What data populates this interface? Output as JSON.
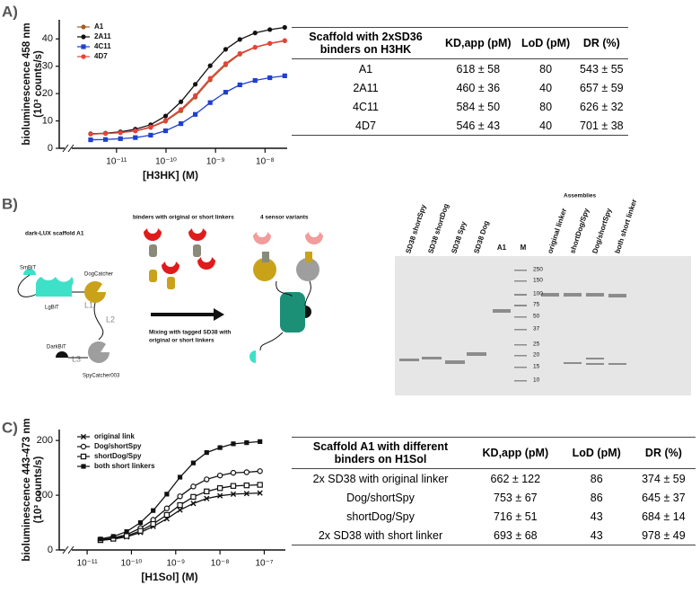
{
  "panels": {
    "a": "A)",
    "b": "B)",
    "c": "C)"
  },
  "chart_data": [
    {
      "type": "line",
      "xscale": "log",
      "xlabel": "[H3HK] (M)",
      "ylabel": [
        "bioluminescence 458 nm",
        "(10³ counts/s)"
      ],
      "xlim": [
        1.25e-12,
        2.8e-08
      ],
      "ylim": [
        0,
        47
      ],
      "xticks": [
        {
          "value": 1e-11,
          "label": "10⁻¹¹"
        },
        {
          "value": 1e-10,
          "label": "10⁻¹⁰"
        },
        {
          "value": 1e-09,
          "label": "10⁻⁹"
        },
        {
          "value": 1e-08,
          "label": "10⁻⁸"
        }
      ],
      "yticks": [
        0,
        10,
        20,
        30,
        40
      ],
      "legend": "upper left",
      "x": [
        3e-12,
        6e-12,
        1.2e-11,
        2.4e-11,
        4.9e-11,
        9.8e-11,
        2e-10,
        3.9e-10,
        7.8e-10,
        1.6e-09,
        3.1e-09,
        6.3e-09,
        1.25e-08,
        2.5e-08
      ],
      "series": [
        {
          "name": "A1",
          "color": "#a0602a",
          "marker": "circle",
          "values": [
            5.2,
            5.4,
            5.7,
            6.3,
            7.6,
            9.9,
            13.7,
            18.7,
            25,
            30.5,
            34.4,
            36.9,
            38.3,
            39.3
          ]
        },
        {
          "name": "2A11",
          "color": "#111111",
          "marker": "circle",
          "values": [
            5.3,
            5.5,
            6,
            7,
            8.6,
            11.8,
            17,
            23.4,
            30.2,
            36.2,
            39.8,
            42.2,
            43.4,
            44.2
          ]
        },
        {
          "name": "4C11",
          "color": "#1f3fd0",
          "marker": "square",
          "values": [
            3.1,
            3.2,
            3.5,
            3.9,
            4.8,
            6.4,
            9,
            12.4,
            16.7,
            20.5,
            23.2,
            24.8,
            25.8,
            26.5
          ]
        },
        {
          "name": "4D7",
          "color": "#e8423a",
          "marker": "circle",
          "values": [
            5.2,
            5.4,
            5.7,
            6.4,
            7.8,
            10.2,
            14.2,
            19.3,
            25.6,
            31,
            34.7,
            37,
            38.4,
            39.4
          ]
        }
      ]
    },
    {
      "type": "line",
      "xscale": "log",
      "xlabel": "[H1Sol] (M)",
      "ylabel": [
        "bioluminescence 443-473 nm",
        "(10³ counts/s)"
      ],
      "xlim": [
        4.5e-12,
        3e-07
      ],
      "ylim": [
        0,
        220
      ],
      "xticks": [
        {
          "value": 1e-11,
          "label": "10⁻¹¹"
        },
        {
          "value": 1e-10,
          "label": "10⁻¹⁰"
        },
        {
          "value": 1e-09,
          "label": "10⁻⁹"
        },
        {
          "value": 1e-08,
          "label": "10⁻⁸"
        },
        {
          "value": 1e-07,
          "label": "10⁻⁷"
        }
      ],
      "yticks": [
        0,
        100,
        200
      ],
      "legend": "upper left",
      "x": [
        2e-11,
        3.9e-11,
        7.8e-11,
        1.6e-10,
        3.1e-10,
        6.3e-10,
        1.25e-09,
        2.5e-09,
        5e-09,
        1e-08,
        2e-08,
        4e-08,
        8e-08
      ],
      "series": [
        {
          "name": "original link",
          "color": "#111111",
          "marker": "x",
          "values": [
            17.5,
            19.8,
            24,
            32,
            43,
            57,
            73,
            85,
            94,
            99,
            102,
            103,
            104
          ]
        },
        {
          "name": "Dog/shortSpy",
          "color": "#111111",
          "marker": "open-circle",
          "values": [
            18.6,
            21.9,
            28,
            40,
            55,
            76,
            98,
            116,
            129,
            136,
            141,
            142,
            144
          ]
        },
        {
          "name": "shortDog/Spy",
          "color": "#111111",
          "marker": "open-square",
          "values": [
            18,
            20.6,
            25.5,
            35,
            47.5,
            64,
            82,
            97,
            107,
            113,
            117,
            118,
            119
          ]
        },
        {
          "name": "both short linkers",
          "color": "#111111",
          "marker": "square",
          "values": [
            20,
            24.8,
            33.5,
            50,
            72,
            102,
            133,
            159,
            178,
            187,
            194,
            196,
            198
          ]
        }
      ]
    }
  ],
  "table_a": {
    "header": [
      "Scaffold with 2xSD36 binders on H3HK",
      "KD,app (pM)",
      "LoD (pM)",
      "DR (%)"
    ],
    "rows": [
      [
        "A1",
        "618 ± 58",
        "80",
        "543 ± 55"
      ],
      [
        "2A11",
        "460 ± 36",
        "40",
        "657 ± 59"
      ],
      [
        "4C11",
        "584 ± 50",
        "80",
        "626 ± 32"
      ],
      [
        "4D7",
        "546 ± 43",
        "40",
        "701 ± 38"
      ]
    ]
  },
  "table_c": {
    "header": [
      "Scaffold A1 with different binders on H1Sol",
      "KD,app (pM)",
      "LoD (pM)",
      "DR (%)"
    ],
    "rows": [
      [
        "2x SD38 with original linker",
        "662 ± 122",
        "86",
        "374 ± 59"
      ],
      [
        "Dog/shortSpy",
        "753 ± 67",
        "86",
        "645 ± 37"
      ],
      [
        "shortDog/Spy",
        "716 ± 51",
        "43",
        "684 ± 14"
      ],
      [
        "2x SD38 with short linker",
        "693 ± 68",
        "43",
        "978 ± 49"
      ]
    ]
  },
  "diagram": {
    "scaffold_title": "dark-LUX scaffold A1",
    "smbit": "SmBiT",
    "lgbit": "LgBiT",
    "dogcatcher": "DogCatcher",
    "l1": "L1",
    "l2": "L2",
    "darkbit": "DarkBiT",
    "l3": "L3",
    "spycatcher": "SpyCatcher003",
    "binders_title": "binders with original or short linkers",
    "mixing": [
      "Mixing with tagged SD38 with",
      "original or short linkers"
    ],
    "variants_title": "4 sensor variants"
  },
  "gel": {
    "assemblies": "Assemblies",
    "lanes": [
      "SD38 shortSpy",
      "SD38 shortDog",
      "SD38 Spy",
      "SD38 Dog",
      "A1",
      "M",
      "original linker",
      "shortDog/Spy",
      "Dog/shortSpy",
      "both short linker"
    ],
    "marker_kda": [
      "250",
      "150",
      "100",
      "75",
      "50",
      "37",
      "25",
      "20",
      "15",
      "10"
    ]
  }
}
